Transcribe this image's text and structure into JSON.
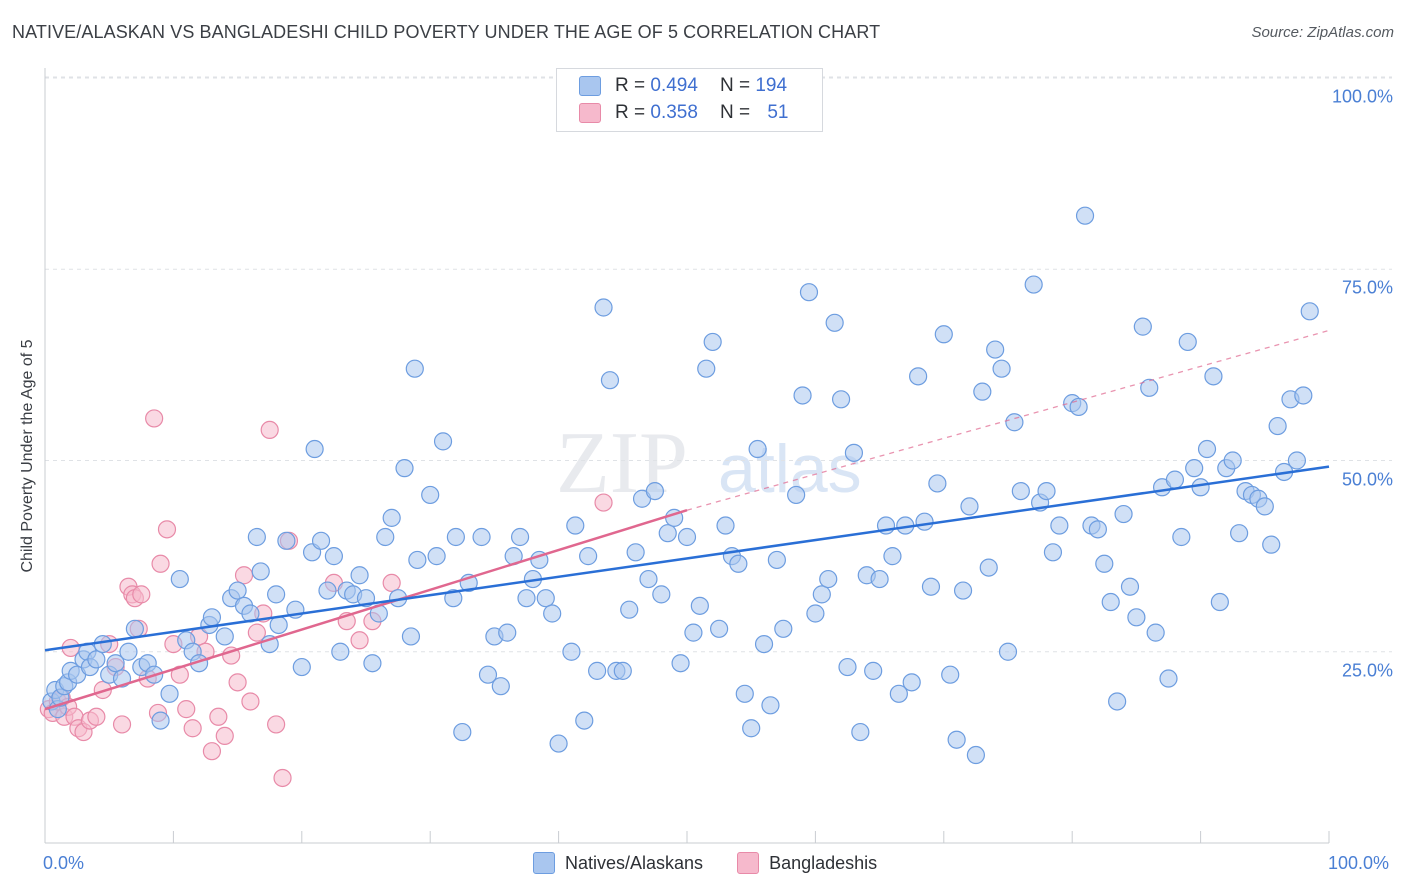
{
  "title": "NATIVE/ALASKAN VS BANGLADESHI CHILD POVERTY UNDER THE AGE OF 5 CORRELATION CHART",
  "source": "Source: ZipAtlas.com",
  "watermark": {
    "part1": "ZIP",
    "part2": "atlas"
  },
  "legend": {
    "r_label": "R =",
    "n_label": "N =",
    "rows": [
      {
        "r": "0.494",
        "n": "194",
        "color": "#a9c6ef"
      },
      {
        "r": "0.358",
        "n": "51",
        "color": "#f6b9cc"
      }
    ]
  },
  "bottom_legend": [
    "Natives/Alaskans",
    "Bangladeshis"
  ],
  "colors": {
    "blue_fill": "#a9c6ef",
    "blue_stroke": "#6d9de0",
    "blue_line": "#2a6fd6",
    "pink_fill": "#f6b9cc",
    "pink_stroke": "#e88aa8",
    "pink_line": "#e0678f",
    "grid": "#dfe2e6",
    "tick_text": "#4a7fd4"
  },
  "chart_data": {
    "type": "scatter",
    "title": "NATIVE/ALASKAN VS BANGLADESHI CHILD POVERTY UNDER THE AGE OF 5 CORRELATION CHART",
    "xlabel": "",
    "ylabel": "Child Poverty Under the Age of 5",
    "xlim": [
      0,
      100
    ],
    "ylim": [
      0,
      100
    ],
    "x_tick_labels": [
      "0.0%",
      "100.0%"
    ],
    "y_tick_labels": [
      "25.0%",
      "50.0%",
      "75.0%",
      "100.0%"
    ],
    "y_ticks": [
      25,
      50,
      75,
      100
    ],
    "grid": true,
    "legend_position": "top-center",
    "series": [
      {
        "name": "Natives/Alaskans",
        "R": 0.494,
        "N": 194,
        "trend": {
          "x0": 0,
          "y0": 25.2,
          "x1": 100,
          "y1": 49.2
        },
        "points": [
          [
            0.5,
            18.5
          ],
          [
            0.8,
            20
          ],
          [
            1,
            17.5
          ],
          [
            1.2,
            19
          ],
          [
            1.5,
            20.5
          ],
          [
            1.8,
            21
          ],
          [
            2,
            22.5
          ],
          [
            2.5,
            22
          ],
          [
            3,
            24
          ],
          [
            3.3,
            25
          ],
          [
            3.5,
            23
          ],
          [
            4,
            24
          ],
          [
            4.5,
            26
          ],
          [
            5,
            22
          ],
          [
            5.5,
            23.5
          ],
          [
            6,
            21.5
          ],
          [
            6.5,
            25
          ],
          [
            7,
            28
          ],
          [
            7.5,
            23
          ],
          [
            8,
            23.5
          ],
          [
            8.5,
            22
          ],
          [
            9,
            16
          ],
          [
            9.7,
            19.5
          ],
          [
            10.5,
            34.5
          ],
          [
            11,
            26.5
          ],
          [
            11.5,
            25
          ],
          [
            12,
            23.5
          ],
          [
            12.8,
            28.5
          ],
          [
            13,
            29.5
          ],
          [
            14,
            27
          ],
          [
            14.5,
            32
          ],
          [
            15,
            33
          ],
          [
            15.5,
            31
          ],
          [
            16,
            30
          ],
          [
            16.5,
            40
          ],
          [
            16.8,
            35.5
          ],
          [
            17.5,
            26
          ],
          [
            18,
            32.5
          ],
          [
            18.2,
            28.5
          ],
          [
            18.8,
            39.5
          ],
          [
            19.5,
            30.5
          ],
          [
            20,
            23
          ],
          [
            20.8,
            38
          ],
          [
            21,
            51.5
          ],
          [
            21.5,
            39.5
          ],
          [
            22,
            33
          ],
          [
            22.5,
            37.5
          ],
          [
            23,
            25
          ],
          [
            23.5,
            33
          ],
          [
            24,
            32.5
          ],
          [
            24.5,
            35
          ],
          [
            25,
            32
          ],
          [
            25.5,
            23.5
          ],
          [
            26,
            30
          ],
          [
            26.5,
            40
          ],
          [
            27,
            42.5
          ],
          [
            27.5,
            32
          ],
          [
            28,
            49
          ],
          [
            28.5,
            27
          ],
          [
            28.8,
            62
          ],
          [
            29,
            37
          ],
          [
            30,
            45.5
          ],
          [
            30.5,
            37.5
          ],
          [
            31,
            52.5
          ],
          [
            31.8,
            32
          ],
          [
            32,
            40
          ],
          [
            32.5,
            14.5
          ],
          [
            33,
            34
          ],
          [
            34,
            40
          ],
          [
            34.5,
            22
          ],
          [
            35,
            27
          ],
          [
            35.5,
            20.5
          ],
          [
            36,
            27.5
          ],
          [
            36.5,
            37.5
          ],
          [
            37,
            40
          ],
          [
            37.5,
            32
          ],
          [
            38,
            34.5
          ],
          [
            38.5,
            37
          ],
          [
            39,
            32
          ],
          [
            39.5,
            30
          ],
          [
            40,
            13
          ],
          [
            41,
            25
          ],
          [
            41.3,
            41.5
          ],
          [
            42,
            16
          ],
          [
            42.3,
            37.5
          ],
          [
            43,
            22.5
          ],
          [
            43.5,
            70
          ],
          [
            44,
            60.5
          ],
          [
            44.5,
            22.5
          ],
          [
            45,
            22.5
          ],
          [
            45.5,
            30.5
          ],
          [
            46,
            38
          ],
          [
            46.5,
            45
          ],
          [
            47,
            34.5
          ],
          [
            47.5,
            46
          ],
          [
            48,
            32.5
          ],
          [
            48.5,
            40.5
          ],
          [
            49,
            42.5
          ],
          [
            49.5,
            23.5
          ],
          [
            50,
            40
          ],
          [
            50.5,
            27.5
          ],
          [
            51,
            31
          ],
          [
            51.5,
            62
          ],
          [
            52,
            65.5
          ],
          [
            52.5,
            28
          ],
          [
            53,
            41.5
          ],
          [
            53.5,
            37.5
          ],
          [
            54,
            36.5
          ],
          [
            54.5,
            19.5
          ],
          [
            55,
            15
          ],
          [
            55.5,
            51.5
          ],
          [
            56,
            26
          ],
          [
            56.5,
            18
          ],
          [
            57,
            37
          ],
          [
            57.5,
            28
          ],
          [
            58.5,
            45.5
          ],
          [
            59,
            58.5
          ],
          [
            59.5,
            72
          ],
          [
            60,
            30
          ],
          [
            60.5,
            32.5
          ],
          [
            61,
            34.5
          ],
          [
            61.5,
            68
          ],
          [
            62,
            58
          ],
          [
            62.5,
            23
          ],
          [
            63,
            51
          ],
          [
            63.5,
            14.5
          ],
          [
            64,
            35
          ],
          [
            64.5,
            22.5
          ],
          [
            65,
            34.5
          ],
          [
            65.5,
            41.5
          ],
          [
            66,
            37.5
          ],
          [
            66.5,
            19.5
          ],
          [
            67,
            41.5
          ],
          [
            67.5,
            21
          ],
          [
            68,
            61
          ],
          [
            68.5,
            42
          ],
          [
            69,
            33.5
          ],
          [
            69.5,
            47
          ],
          [
            70,
            66.5
          ],
          [
            70.5,
            22
          ],
          [
            71,
            13.5
          ],
          [
            71.5,
            33
          ],
          [
            72,
            44
          ],
          [
            72.5,
            11.5
          ],
          [
            73,
            59
          ],
          [
            73.5,
            36
          ],
          [
            74,
            64.5
          ],
          [
            74.5,
            62
          ],
          [
            75,
            25
          ],
          [
            75.5,
            55
          ],
          [
            76,
            46
          ],
          [
            77,
            73
          ],
          [
            77.5,
            44.5
          ],
          [
            78,
            46
          ],
          [
            78.5,
            38
          ],
          [
            79,
            41.5
          ],
          [
            80,
            57.5
          ],
          [
            80.5,
            57
          ],
          [
            81,
            82
          ],
          [
            81.5,
            41.5
          ],
          [
            82,
            41
          ],
          [
            82.5,
            36.5
          ],
          [
            83,
            31.5
          ],
          [
            83.5,
            18.5
          ],
          [
            84,
            43
          ],
          [
            84.5,
            33.5
          ],
          [
            85,
            29.5
          ],
          [
            85.5,
            67.5
          ],
          [
            86,
            59.5
          ],
          [
            86.5,
            27.5
          ],
          [
            87,
            46.5
          ],
          [
            87.5,
            21.5
          ],
          [
            88,
            47.5
          ],
          [
            88.5,
            40
          ],
          [
            89,
            65.5
          ],
          [
            89.5,
            49
          ],
          [
            90,
            46.5
          ],
          [
            90.5,
            51.5
          ],
          [
            91,
            61
          ],
          [
            91.5,
            31.5
          ],
          [
            92,
            49
          ],
          [
            92.5,
            50
          ],
          [
            93,
            40.5
          ],
          [
            93.5,
            46
          ],
          [
            94,
            45.5
          ],
          [
            94.5,
            45
          ],
          [
            95,
            44
          ],
          [
            95.5,
            39
          ],
          [
            96,
            54.5
          ],
          [
            96.5,
            48.5
          ],
          [
            97,
            58
          ],
          [
            97.5,
            50
          ],
          [
            98,
            58.5
          ],
          [
            98.5,
            69.5
          ]
        ]
      },
      {
        "name": "Bangladeshis",
        "R": 0.358,
        "N": 51,
        "trend": {
          "x0": 0,
          "y0": 17.5,
          "x1": 50,
          "y1": 43.5,
          "dashed_to": {
            "x": 100,
            "y": 67
          }
        },
        "points": [
          [
            0.3,
            17.5
          ],
          [
            0.6,
            17
          ],
          [
            1,
            18.5
          ],
          [
            1.3,
            19
          ],
          [
            1.5,
            16.5
          ],
          [
            1.8,
            17.8
          ],
          [
            2,
            25.5
          ],
          [
            2.3,
            16.5
          ],
          [
            2.6,
            15
          ],
          [
            3,
            14.5
          ],
          [
            3.5,
            16
          ],
          [
            4,
            16.5
          ],
          [
            4.5,
            20
          ],
          [
            5,
            26
          ],
          [
            5.5,
            23
          ],
          [
            6,
            15.5
          ],
          [
            6.5,
            33.5
          ],
          [
            6.8,
            32.5
          ],
          [
            7,
            32
          ],
          [
            7.3,
            28
          ],
          [
            7.5,
            32.5
          ],
          [
            8,
            21.5
          ],
          [
            8.5,
            55.5
          ],
          [
            8.8,
            17
          ],
          [
            9,
            36.5
          ],
          [
            9.5,
            41
          ],
          [
            10,
            26
          ],
          [
            10.5,
            22
          ],
          [
            11,
            17.5
          ],
          [
            11.5,
            15
          ],
          [
            12,
            27
          ],
          [
            12.5,
            25
          ],
          [
            13,
            12
          ],
          [
            13.5,
            16.5
          ],
          [
            14,
            14
          ],
          [
            14.5,
            24.5
          ],
          [
            15,
            21
          ],
          [
            15.5,
            35
          ],
          [
            16,
            18.5
          ],
          [
            16.5,
            27.5
          ],
          [
            17,
            30
          ],
          [
            17.5,
            54
          ],
          [
            18,
            15.5
          ],
          [
            18.5,
            8.5
          ],
          [
            19,
            39.5
          ],
          [
            22.5,
            34
          ],
          [
            23.5,
            29
          ],
          [
            24.5,
            26.5
          ],
          [
            25.5,
            29
          ],
          [
            27,
            34
          ],
          [
            43.5,
            44.5
          ]
        ]
      }
    ]
  }
}
